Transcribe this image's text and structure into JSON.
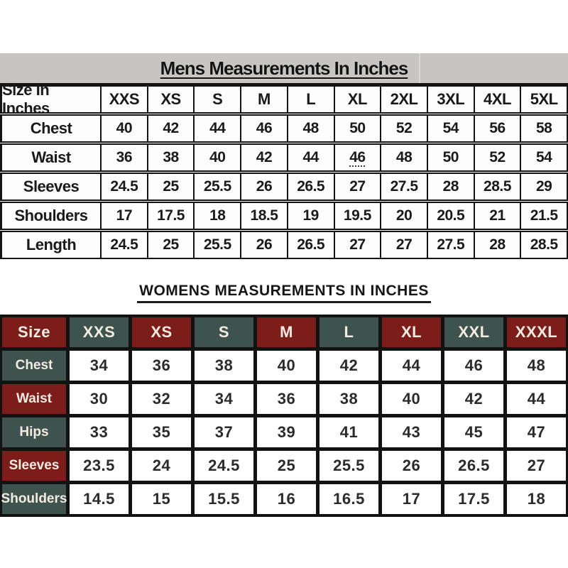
{
  "page": {
    "background": "#ffffff"
  },
  "colors": {
    "band_gray": "#c6c5c3",
    "line_black": "#141414",
    "maroon": "#7d1d1a",
    "green": "#3e524e",
    "grid_black": "#121212",
    "womens_header_text": "#f2ece2"
  },
  "mens_table": {
    "title": "Mens Measurements In Inches",
    "header": [
      "Size In Inches",
      "XXS",
      "XS",
      "S",
      "M",
      "L",
      "XL",
      "2XL",
      "3XL",
      "4XL",
      "5XL"
    ],
    "rows": [
      {
        "label": "Chest",
        "values": [
          "40",
          "42",
          "44",
          "46",
          "48",
          "50",
          "52",
          "54",
          "56",
          "58"
        ]
      },
      {
        "label": "Waist",
        "values": [
          "36",
          "38",
          "40",
          "42",
          "44",
          "46",
          "48",
          "50",
          "52",
          "54"
        ]
      },
      {
        "label": "Sleeves",
        "values": [
          "24.5",
          "25",
          "25.5",
          "26",
          "26.5",
          "27",
          "27.5",
          "28",
          "28.5",
          "29"
        ]
      },
      {
        "label": "Shoulders",
        "values": [
          "17",
          "17.5",
          "18",
          "18.5",
          "19",
          "19.5",
          "20",
          "20.5",
          "21",
          "21.5"
        ]
      },
      {
        "label": "Length",
        "values": [
          "24.5",
          "25",
          "25.5",
          "26",
          "26.5",
          "27",
          "27",
          "27.5",
          "28",
          "28.5"
        ]
      }
    ],
    "dotted_underline": {
      "row": "Waist",
      "col_index": 5
    }
  },
  "womens_table": {
    "title": "WOMENS MEASUREMENTS IN INCHES",
    "header": [
      "Size",
      "XXS",
      "XS",
      "S",
      "M",
      "L",
      "XL",
      "XXL",
      "XXXL"
    ],
    "rows": [
      {
        "label": "Chest",
        "values": [
          "34",
          "36",
          "38",
          "40",
          "42",
          "44",
          "46",
          "48"
        ]
      },
      {
        "label": "Waist",
        "values": [
          "30",
          "32",
          "34",
          "36",
          "38",
          "40",
          "42",
          "44"
        ]
      },
      {
        "label": "Hips",
        "values": [
          "33",
          "35",
          "37",
          "39",
          "41",
          "43",
          "45",
          "47"
        ]
      },
      {
        "label": "Sleeves",
        "values": [
          "23.5",
          "24",
          "24.5",
          "25",
          "25.5",
          "26",
          "26.5",
          "27"
        ]
      },
      {
        "label": "Shoulders",
        "values": [
          "14.5",
          "15",
          "15.5",
          "16",
          "16.5",
          "17",
          "17.5",
          "18"
        ]
      }
    ]
  }
}
